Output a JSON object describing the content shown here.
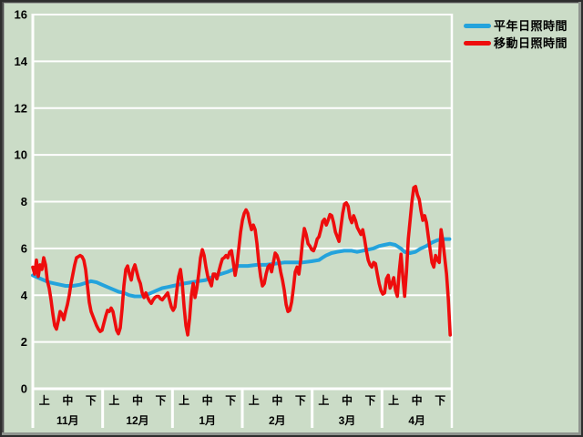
{
  "window": {
    "background_color": "#cbdcc7",
    "frame_outer_color": "#2e2e2e",
    "frame_bevel_gray": "#8f958f",
    "frame_bevel_dark": "#4b4b4b",
    "frame_inner_light": "#a2a8a0",
    "gridline_color": "#ffffff"
  },
  "legend": {
    "position": "top-right",
    "items": [
      {
        "label": "平年日照時間",
        "color": "#24a3dc"
      },
      {
        "label": "移動日照時間",
        "color": "#ee0d0d"
      }
    ]
  },
  "chart_data": {
    "type": "line",
    "title": "",
    "xlabel": "",
    "ylabel": "",
    "ylim": [
      0,
      16
    ],
    "y_ticks": [
      0,
      2,
      4,
      6,
      8,
      10,
      12,
      14,
      16
    ],
    "grid": "horizontal white gridlines every 2; white axis frame and month separators",
    "legend_position": "top-right outside plot",
    "x_axis": {
      "months": [
        "11月",
        "12月",
        "1月",
        "2月",
        "3月",
        "4月"
      ],
      "periods": [
        "上",
        "中",
        "下"
      ],
      "note": "x unit = ten-day period (旬) index 0-18, three periods per month"
    },
    "series": [
      {
        "id": "heinen",
        "name": "平年日照時間",
        "color": "#24a3dc",
        "width": 4,
        "points": [
          [
            0.0,
            4.85
          ],
          [
            0.23,
            4.75
          ],
          [
            0.47,
            4.65
          ],
          [
            0.7,
            4.55
          ],
          [
            0.94,
            4.5
          ],
          [
            1.17,
            4.45
          ],
          [
            1.41,
            4.4
          ],
          [
            1.72,
            4.4
          ],
          [
            2.03,
            4.45
          ],
          [
            2.35,
            4.55
          ],
          [
            2.5,
            4.6
          ],
          [
            2.74,
            4.55
          ],
          [
            2.97,
            4.45
          ],
          [
            3.21,
            4.35
          ],
          [
            3.44,
            4.25
          ],
          [
            3.68,
            4.15
          ],
          [
            3.91,
            4.1
          ],
          [
            4.15,
            4.0
          ],
          [
            4.38,
            3.95
          ],
          [
            4.62,
            3.95
          ],
          [
            4.85,
            4.0
          ],
          [
            5.09,
            4.1
          ],
          [
            5.32,
            4.2
          ],
          [
            5.56,
            4.3
          ],
          [
            5.79,
            4.35
          ],
          [
            6.03,
            4.4
          ],
          [
            6.26,
            4.45
          ],
          [
            6.5,
            4.5
          ],
          [
            6.81,
            4.55
          ],
          [
            7.12,
            4.6
          ],
          [
            7.43,
            4.65
          ],
          [
            7.75,
            4.8
          ],
          [
            8.06,
            4.9
          ],
          [
            8.37,
            5.0
          ],
          [
            8.61,
            5.1
          ],
          [
            8.73,
            5.2
          ],
          [
            8.84,
            5.25
          ],
          [
            9.23,
            5.25
          ],
          [
            9.63,
            5.3
          ],
          [
            10.02,
            5.3
          ],
          [
            10.41,
            5.35
          ],
          [
            10.8,
            5.4
          ],
          [
            11.19,
            5.4
          ],
          [
            11.58,
            5.4
          ],
          [
            11.97,
            5.45
          ],
          [
            12.29,
            5.5
          ],
          [
            12.44,
            5.6
          ],
          [
            12.6,
            5.7
          ],
          [
            12.83,
            5.8
          ],
          [
            13.07,
            5.85
          ],
          [
            13.38,
            5.9
          ],
          [
            13.7,
            5.9
          ],
          [
            13.93,
            5.85
          ],
          [
            14.16,
            5.9
          ],
          [
            14.4,
            5.95
          ],
          [
            14.63,
            6.0
          ],
          [
            14.87,
            6.1
          ],
          [
            15.1,
            6.15
          ],
          [
            15.34,
            6.2
          ],
          [
            15.57,
            6.15
          ],
          [
            15.81,
            6.0
          ],
          [
            15.97,
            5.85
          ],
          [
            16.2,
            5.8
          ],
          [
            16.43,
            5.85
          ],
          [
            16.67,
            6.0
          ],
          [
            16.9,
            6.1
          ],
          [
            17.14,
            6.25
          ],
          [
            17.37,
            6.35
          ],
          [
            17.61,
            6.4
          ],
          [
            17.9,
            6.4
          ]
        ]
      },
      {
        "id": "ido",
        "name": "移動日照時間",
        "color": "#ee0d0d",
        "width": 3.6,
        "x_start": 0,
        "x_step": 0.0783,
        "values": [
          5.2,
          4.9,
          5.5,
          4.8,
          5.3,
          5.1,
          5.6,
          5.3,
          4.6,
          4.3,
          3.8,
          3.2,
          2.7,
          2.55,
          2.9,
          3.3,
          3.2,
          2.95,
          3.3,
          3.6,
          4.0,
          4.5,
          4.9,
          5.3,
          5.6,
          5.65,
          5.7,
          5.65,
          5.5,
          5.1,
          4.4,
          3.7,
          3.3,
          3.1,
          2.9,
          2.7,
          2.55,
          2.45,
          2.5,
          2.8,
          3.1,
          3.35,
          3.3,
          3.45,
          3.3,
          2.9,
          2.5,
          2.35,
          2.6,
          3.4,
          4.4,
          5.1,
          5.25,
          4.9,
          4.65,
          5.1,
          5.3,
          5.0,
          4.7,
          4.5,
          4.1,
          3.9,
          4.1,
          3.9,
          3.75,
          3.65,
          3.8,
          3.9,
          3.95,
          3.95,
          3.85,
          3.8,
          3.9,
          4.0,
          4.1,
          3.8,
          3.5,
          3.35,
          3.5,
          4.2,
          4.8,
          5.1,
          4.5,
          3.5,
          2.7,
          2.3,
          3.0,
          4.0,
          4.5,
          3.9,
          4.3,
          4.9,
          5.6,
          5.95,
          5.7,
          5.2,
          4.8,
          4.6,
          4.4,
          4.9,
          4.9,
          4.7,
          5.0,
          5.3,
          5.55,
          5.6,
          5.7,
          5.6,
          5.85,
          5.9,
          5.4,
          4.85,
          5.3,
          6.0,
          6.7,
          7.2,
          7.5,
          7.65,
          7.5,
          7.1,
          6.8,
          7.0,
          6.8,
          6.2,
          5.4,
          4.8,
          4.4,
          4.5,
          4.9,
          5.2,
          5.3,
          5.0,
          5.4,
          5.8,
          5.7,
          5.45,
          5.0,
          4.65,
          4.2,
          3.6,
          3.3,
          3.35,
          3.7,
          4.3,
          5.0,
          5.2,
          4.9,
          5.5,
          6.3,
          6.85,
          6.6,
          6.2,
          6.1,
          5.95,
          5.9,
          6.1,
          6.4,
          6.5,
          6.8,
          7.15,
          7.25,
          7.0,
          7.2,
          7.45,
          7.4,
          7.1,
          6.7,
          6.5,
          6.3,
          6.9,
          7.5,
          7.9,
          7.95,
          7.8,
          7.3,
          7.1,
          7.4,
          7.2,
          6.9,
          6.75,
          6.6,
          6.8,
          6.4,
          5.9,
          5.5,
          5.3,
          5.2,
          5.4,
          5.35,
          4.9,
          4.5,
          4.2,
          4.05,
          4.1,
          4.7,
          4.85,
          4.3,
          4.5,
          4.75,
          4.2,
          3.95,
          5.0,
          5.75,
          4.8,
          3.95,
          5.0,
          6.4,
          7.2,
          8.0,
          8.6,
          8.65,
          8.3,
          8.1,
          7.6,
          7.2,
          7.4,
          7.1,
          6.5,
          5.95,
          5.4,
          5.2,
          5.7,
          5.5,
          5.4,
          6.8,
          6.3,
          5.6,
          4.9,
          3.8,
          2.3
        ]
      }
    ]
  }
}
